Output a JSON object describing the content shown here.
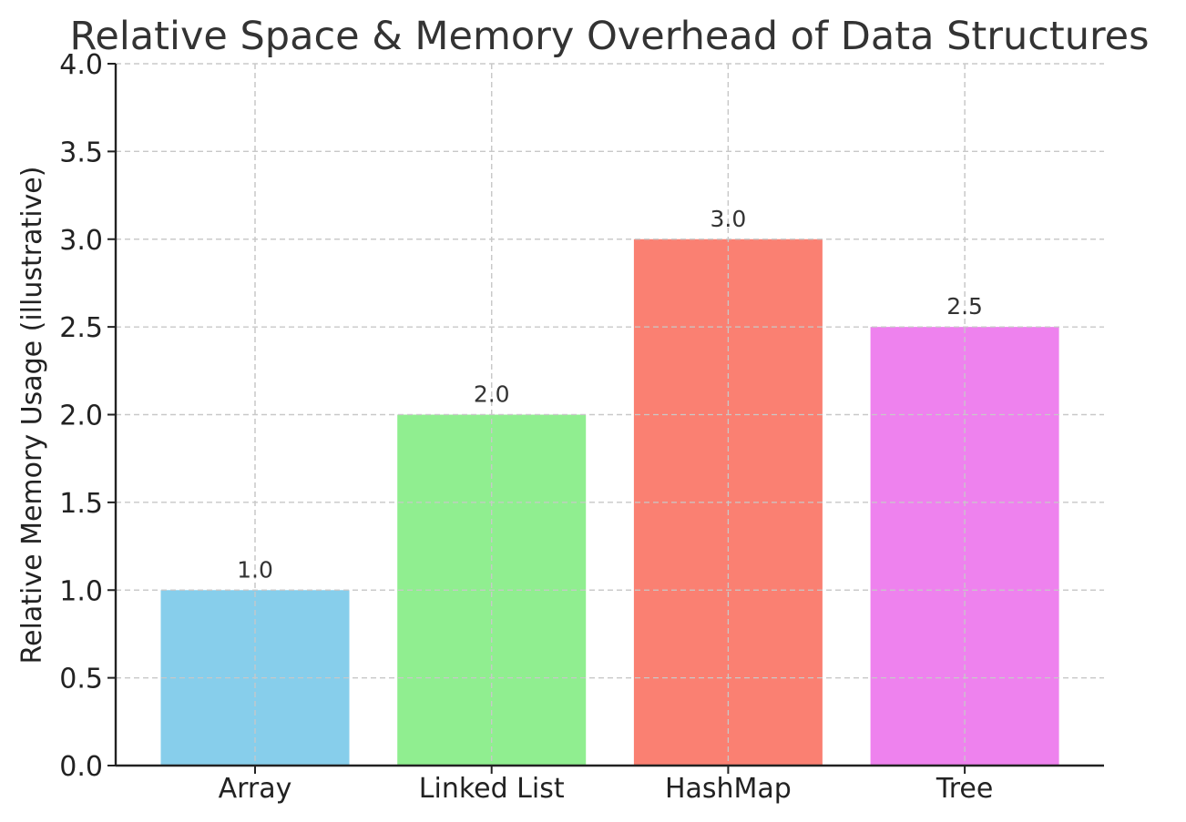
{
  "chart_data": {
    "type": "bar",
    "title": "Relative Space & Memory Overhead of Data Structures",
    "xlabel": "",
    "ylabel": "Relative Memory Usage (illustrative)",
    "categories": [
      "Array",
      "Linked List",
      "HashMap",
      "Tree"
    ],
    "values": [
      1.0,
      2.0,
      3.0,
      2.5
    ],
    "value_labels": [
      "1.0",
      "2.0",
      "3.0",
      "2.5"
    ],
    "colors": [
      "#87ceeb",
      "#90ee90",
      "#fa8072",
      "#ee82ee"
    ],
    "ylim": [
      0,
      4
    ],
    "yticks": [
      0.0,
      0.5,
      1.0,
      1.5,
      2.0,
      2.5,
      3.0,
      3.5,
      4.0
    ],
    "ytick_labels": [
      "0.0",
      "0.5",
      "1.0",
      "1.5",
      "2.0",
      "2.5",
      "3.0",
      "3.5",
      "4.0"
    ],
    "grid": true,
    "grid_style": "dashed",
    "legend": "none"
  }
}
